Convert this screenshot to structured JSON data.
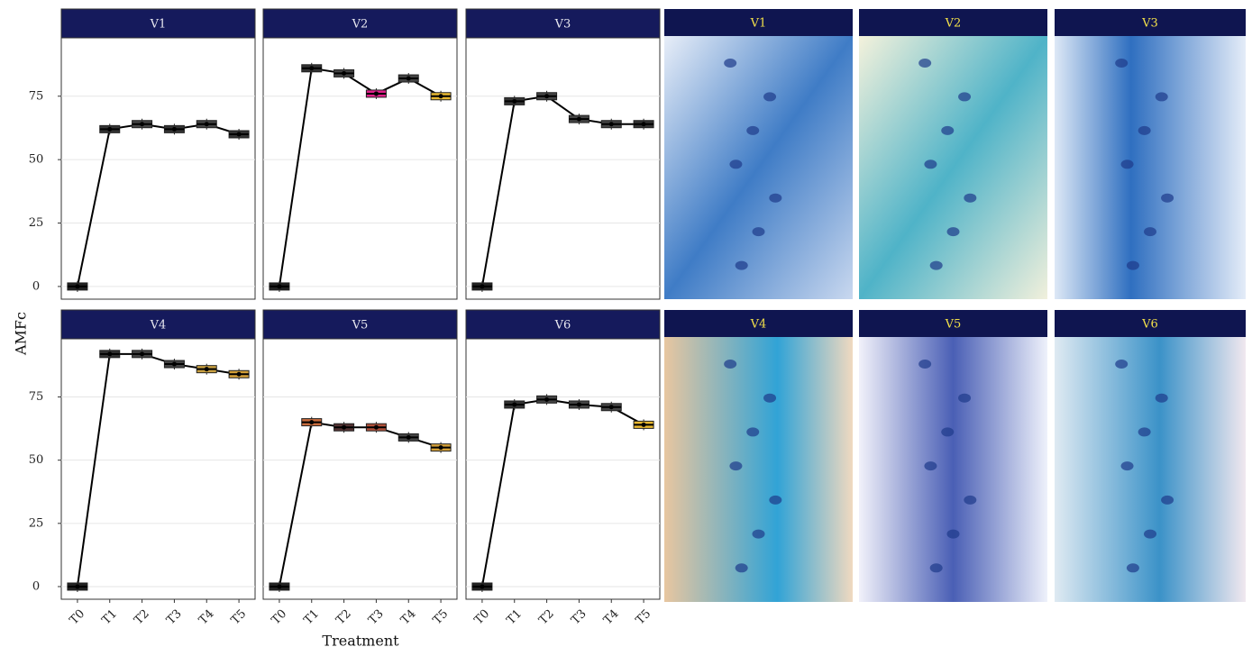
{
  "chart_data": {
    "type": "box",
    "x_label": "Treatment",
    "y_label": "AMFc",
    "categories": [
      "T0",
      "T1",
      "T2",
      "T3",
      "T4",
      "T5"
    ],
    "ylim": [
      -5,
      98
    ],
    "yticks": [
      0,
      25,
      50,
      75
    ],
    "grid": true,
    "line_color": "#000000",
    "facets": [
      {
        "title": "V1",
        "values": [
          0,
          62,
          64,
          62,
          64,
          60
        ],
        "colors": [
          "#222222",
          "#333333",
          "#444444",
          "#333333",
          "#444444",
          "#333333"
        ]
      },
      {
        "title": "V2",
        "values": [
          0,
          86,
          84,
          76,
          82,
          75
        ],
        "colors": [
          "#222222",
          "#333333",
          "#444444",
          "#e0218a",
          "#444444",
          "#e8b830"
        ]
      },
      {
        "title": "V3",
        "values": [
          0,
          73,
          75,
          66,
          64,
          64
        ],
        "colors": [
          "#222222",
          "#333333",
          "#444444",
          "#444444",
          "#444444",
          "#333333"
        ]
      },
      {
        "title": "V4",
        "values": [
          0,
          92,
          92,
          88,
          86,
          84
        ],
        "colors": [
          "#222222",
          "#333333",
          "#444444",
          "#444444",
          "#c9a040",
          "#d4a038"
        ]
      },
      {
        "title": "V5",
        "values": [
          0,
          65,
          63,
          63,
          59,
          55
        ],
        "colors": [
          "#222222",
          "#c86b3c",
          "#553333",
          "#b0503a",
          "#444444",
          "#d4a038"
        ]
      },
      {
        "title": "V6",
        "values": [
          0,
          72,
          74,
          72,
          71,
          64
        ],
        "colors": [
          "#222222",
          "#333333",
          "#444444",
          "#444444",
          "#444444",
          "#e8b830"
        ]
      }
    ]
  },
  "images": [
    {
      "label": "V1"
    },
    {
      "label": "V2"
    },
    {
      "label": "V3"
    },
    {
      "label": "V4"
    },
    {
      "label": "V5"
    },
    {
      "label": "V6"
    }
  ]
}
